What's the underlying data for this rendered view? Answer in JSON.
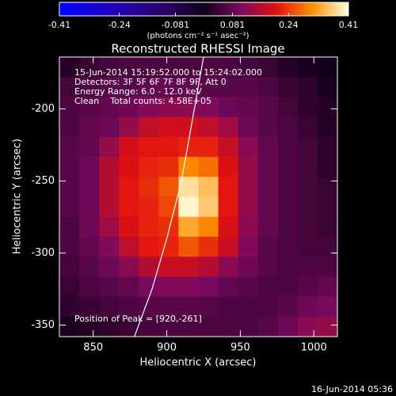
{
  "chart_data": {
    "type": "heatmap",
    "title": "Reconstructed RHESSI Image",
    "x_label": "Heliocentric X (arcsec)",
    "y_label": "Heliocentric Y (arcsec)",
    "xlim": [
      827,
      1016
    ],
    "ylim": [
      -358,
      -164
    ],
    "xticks": [
      850,
      900,
      950,
      1000
    ],
    "yticks": [
      -200,
      -250,
      -300,
      -350
    ],
    "colorbar": {
      "label": "(photons cm⁻² s⁻¹ asec⁻²)",
      "lim": [
        -0.41,
        0.41
      ],
      "ticks": [
        -0.41,
        -0.24,
        -0.081,
        0.081,
        0.24,
        0.41
      ],
      "colors": [
        "#0000ff",
        "#1a00d8",
        "#2a00a0",
        "#280060",
        "#100018",
        "#7a0a60",
        "#e01010",
        "#ff9000",
        "#ffffe0"
      ]
    },
    "z": [
      [
        0.02,
        0.04,
        0.05,
        0.06,
        0.06,
        0.06,
        0.06,
        0.06,
        0.06,
        0.05,
        0.04,
        0.02,
        0.01,
        0.0
      ],
      [
        0.05,
        0.06,
        0.07,
        0.07,
        0.08,
        0.08,
        0.08,
        0.07,
        0.07,
        0.07,
        0.06,
        0.04,
        0.03,
        0.01
      ],
      [
        0.06,
        0.07,
        0.08,
        0.09,
        0.11,
        0.12,
        0.12,
        0.11,
        0.09,
        0.08,
        0.07,
        0.05,
        0.03,
        0.02
      ],
      [
        0.06,
        0.08,
        0.09,
        0.13,
        0.17,
        0.19,
        0.19,
        0.17,
        0.14,
        0.09,
        0.07,
        0.06,
        0.04,
        0.02
      ],
      [
        0.07,
        0.08,
        0.13,
        0.19,
        0.21,
        0.21,
        0.22,
        0.22,
        0.18,
        0.12,
        0.08,
        0.06,
        0.05,
        0.03
      ],
      [
        0.07,
        0.09,
        0.16,
        0.2,
        0.22,
        0.23,
        0.3,
        0.28,
        0.2,
        0.13,
        0.08,
        0.06,
        0.05,
        0.03
      ],
      [
        0.07,
        0.09,
        0.16,
        0.21,
        0.23,
        0.26,
        0.38,
        0.35,
        0.21,
        0.13,
        0.08,
        0.06,
        0.05,
        0.04
      ],
      [
        0.07,
        0.09,
        0.16,
        0.21,
        0.22,
        0.25,
        0.4,
        0.36,
        0.21,
        0.13,
        0.08,
        0.06,
        0.05,
        0.04
      ],
      [
        0.06,
        0.09,
        0.14,
        0.2,
        0.22,
        0.23,
        0.33,
        0.3,
        0.2,
        0.12,
        0.08,
        0.06,
        0.05,
        0.04
      ],
      [
        0.06,
        0.08,
        0.11,
        0.17,
        0.21,
        0.22,
        0.26,
        0.23,
        0.18,
        0.11,
        0.07,
        0.06,
        0.05,
        0.05
      ],
      [
        0.05,
        0.07,
        0.09,
        0.12,
        0.16,
        0.18,
        0.18,
        0.16,
        0.12,
        0.09,
        0.07,
        0.06,
        0.06,
        0.06
      ],
      [
        0.04,
        0.06,
        0.07,
        0.08,
        0.1,
        0.11,
        0.11,
        0.1,
        0.08,
        0.07,
        0.06,
        0.06,
        0.07,
        0.08
      ],
      [
        0.03,
        0.04,
        0.05,
        0.06,
        0.07,
        0.07,
        0.07,
        0.07,
        0.06,
        0.06,
        0.06,
        0.07,
        0.09,
        0.1
      ],
      [
        0.01,
        0.02,
        0.03,
        0.04,
        0.05,
        0.06,
        0.06,
        0.06,
        0.06,
        0.06,
        0.07,
        0.09,
        0.12,
        0.13
      ]
    ],
    "limb": {
      "color": "#ffffff",
      "x": [
        925,
        917,
        910,
        900,
        890,
        878
      ],
      "y": [
        -164,
        -210,
        -250,
        -290,
        -325,
        -358
      ]
    },
    "annotations": [
      "15-Jun-2014 15:19:52.000 to 15:24:02.000",
      "Detectors: 3F 5F 6F 7F 8F 9F, Att 0",
      "Energy Range: 6.0 - 12.0 keV",
      "Clean    Total counts: 4.58E+05"
    ],
    "peak_label": "Position of Peak = [920,-261]",
    "timestamp": "16-Jun-2014 05:36"
  }
}
